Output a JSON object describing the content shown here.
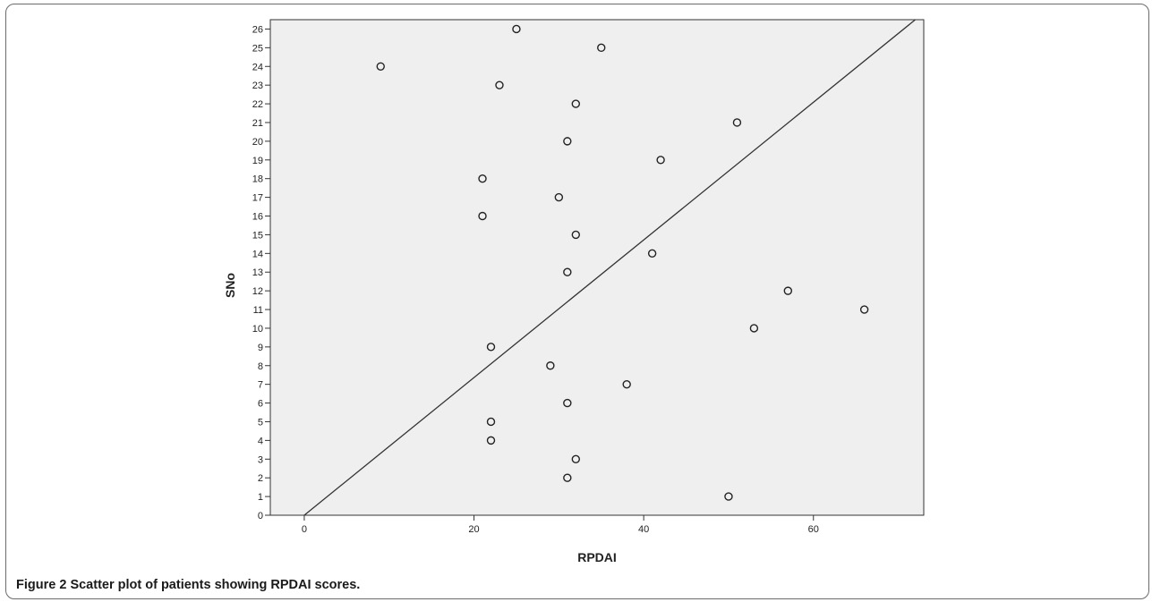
{
  "figure": {
    "label": "Figure 2",
    "caption": "Scatter plot of patients showing RPDAI scores."
  },
  "chart_data": {
    "type": "scatter",
    "xlabel": "RPDAI",
    "ylabel": "SNo",
    "xlim": [
      -4,
      73
    ],
    "ylim": [
      0,
      26.5
    ],
    "x_ticks": [
      0,
      20,
      40,
      60
    ],
    "y_ticks": [
      0,
      1,
      2,
      3,
      4,
      5,
      6,
      7,
      8,
      9,
      10,
      11,
      12,
      13,
      14,
      15,
      16,
      17,
      18,
      19,
      20,
      21,
      22,
      23,
      24,
      25,
      26
    ],
    "grid": false,
    "legend": "none",
    "colors": {
      "plot_background": "#efefef",
      "marker": "#222222",
      "line": "#333333"
    },
    "series": [
      {
        "points": [
          {
            "x": 50,
            "y": 1
          },
          {
            "x": 31,
            "y": 2
          },
          {
            "x": 32,
            "y": 3
          },
          {
            "x": 22,
            "y": 4
          },
          {
            "x": 22,
            "y": 5
          },
          {
            "x": 31,
            "y": 6
          },
          {
            "x": 38,
            "y": 7
          },
          {
            "x": 29,
            "y": 8
          },
          {
            "x": 22,
            "y": 9
          },
          {
            "x": 53,
            "y": 10
          },
          {
            "x": 66,
            "y": 11
          },
          {
            "x": 57,
            "y": 12
          },
          {
            "x": 31,
            "y": 13
          },
          {
            "x": 41,
            "y": 14
          },
          {
            "x": 32,
            "y": 15
          },
          {
            "x": 21,
            "y": 16
          },
          {
            "x": 30,
            "y": 17
          },
          {
            "x": 21,
            "y": 18
          },
          {
            "x": 42,
            "y": 19
          },
          {
            "x": 31,
            "y": 20
          },
          {
            "x": 51,
            "y": 21
          },
          {
            "x": 32,
            "y": 22
          },
          {
            "x": 23,
            "y": 23
          },
          {
            "x": 9,
            "y": 24
          },
          {
            "x": 35,
            "y": 25
          },
          {
            "x": 25,
            "y": 26
          }
        ]
      }
    ],
    "reference_line": {
      "x": [
        0,
        72
      ],
      "y": [
        0,
        26.5
      ]
    }
  }
}
